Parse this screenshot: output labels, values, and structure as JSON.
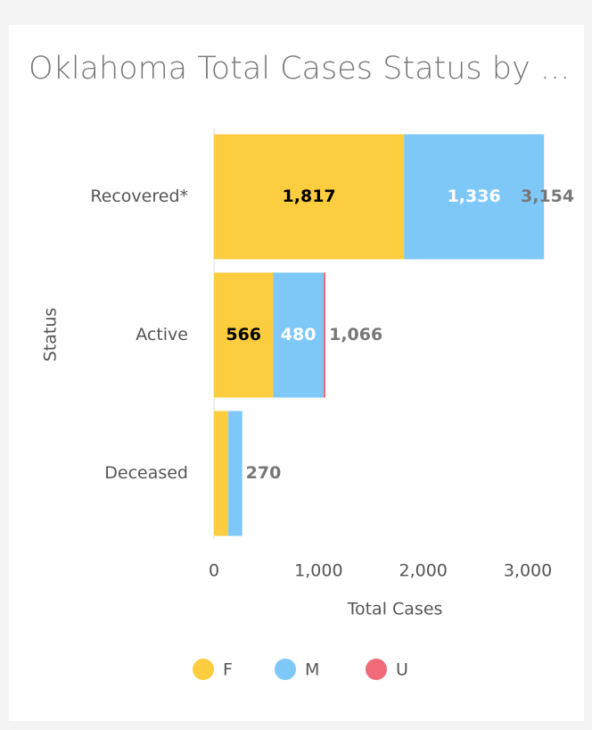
{
  "chart_data": {
    "type": "stacked_barh",
    "title": "Oklahoma Total Cases Status by ...",
    "x_label": "Total Cases",
    "y_label": "Status",
    "categories": [
      "Recovered*",
      "Active",
      "Deceased"
    ],
    "series": [
      {
        "name": "F",
        "color": "#fccd3f",
        "values": [
          1817,
          566,
          137
        ],
        "value_labels": [
          "1,817",
          "566",
          null
        ]
      },
      {
        "name": "M",
        "color": "#7ec8f8",
        "values": [
          1336,
          480,
          133
        ],
        "value_labels": [
          "1,336",
          "480",
          null
        ]
      },
      {
        "name": "U",
        "color": "#f06a7a",
        "values": [
          1,
          20,
          0
        ],
        "value_labels": [
          null,
          null,
          null
        ]
      }
    ],
    "totals": [
      3154,
      1066,
      270
    ],
    "total_labels": [
      "3,154",
      "1,066",
      "270"
    ],
    "xlim": [
      0,
      3400
    ],
    "xticks": [
      0,
      {
        "value": 1000,
        "label": "1,000"
      },
      {
        "value": 2000,
        "label": "2,000"
      },
      {
        "value": 3000,
        "label": "3,000"
      }
    ],
    "legend": "bottom"
  }
}
